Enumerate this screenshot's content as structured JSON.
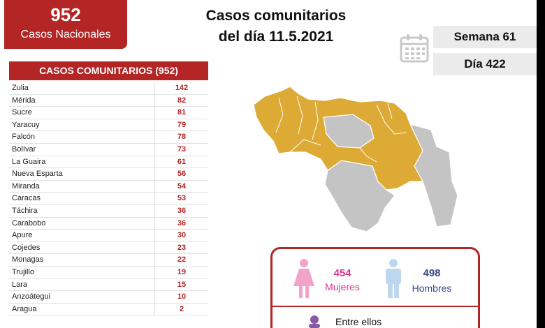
{
  "badge": {
    "number": "952",
    "label": "Casos Nacionales"
  },
  "title": {
    "line1": "Casos comunitarios",
    "line2": "del día 11.5.2021"
  },
  "week": "Semana 61",
  "day": "Día 422",
  "table": {
    "header": "CASOS COMUNITARIOS (952)",
    "rows": [
      {
        "name": "Zulia",
        "value": "142"
      },
      {
        "name": "Mérida",
        "value": "82"
      },
      {
        "name": "Sucre",
        "value": "81"
      },
      {
        "name": "Yaracuy",
        "value": "79"
      },
      {
        "name": "Falcón",
        "value": "78"
      },
      {
        "name": "Bolívar",
        "value": "73"
      },
      {
        "name": "La Guaira",
        "value": "61"
      },
      {
        "name": "Nueva Esparta",
        "value": "56"
      },
      {
        "name": "Miranda",
        "value": "54"
      },
      {
        "name": "Caracas",
        "value": "53"
      },
      {
        "name": "Táchira",
        "value": "36"
      },
      {
        "name": "Carabobo",
        "value": "36"
      },
      {
        "name": "Apure",
        "value": "30"
      },
      {
        "name": "Cojedes",
        "value": "23"
      },
      {
        "name": "Monagas",
        "value": "22"
      },
      {
        "name": "Trujillo",
        "value": "19"
      },
      {
        "name": "Lara",
        "value": "15"
      },
      {
        "name": "Anzoátegui",
        "value": "10"
      },
      {
        "name": "Aragua",
        "value": "2"
      }
    ]
  },
  "gender": {
    "female_count": "454",
    "female_label": "Mujeres",
    "male_count": "498",
    "male_label": "Hombres",
    "female_color": "#f4a3c8",
    "male_color": "#bcd7ee",
    "note": "Entre ellos"
  },
  "colors": {
    "accent": "#b42525",
    "map_affected": "#dcaa35",
    "map_other": "#c4c4c4"
  },
  "icons": {
    "calendar": "calendar-icon",
    "female": "female-figure-icon",
    "male": "male-figure-icon"
  }
}
